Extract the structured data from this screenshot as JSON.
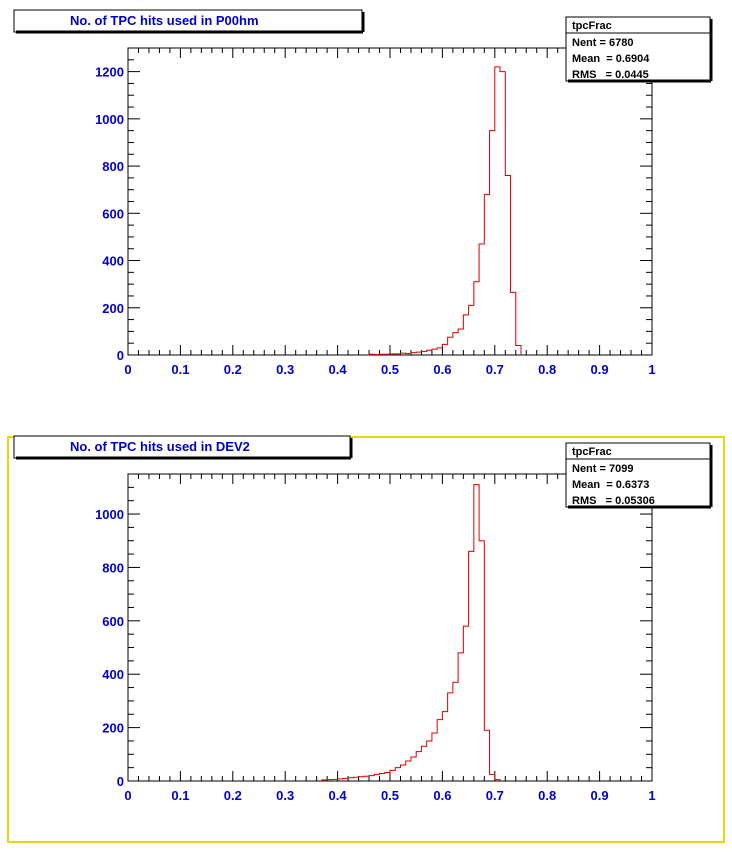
{
  "colors": {
    "axis_text": "#0000cc",
    "histogram_line": "#dd0000",
    "pad_highlight": "#e8d800",
    "frame": "#000000"
  },
  "chart_data": [
    {
      "type": "histogram",
      "title": "No. of TPC hits used in P00hm",
      "xlabel": "",
      "ylabel": "",
      "xlim": [
        0,
        1
      ],
      "ylim": [
        0,
        1300
      ],
      "x_ticks": [
        "0",
        "0.1",
        "0.2",
        "0.3",
        "0.4",
        "0.5",
        "0.6",
        "0.7",
        "0.8",
        "0.9",
        "1"
      ],
      "y_ticks": [
        "0",
        "200",
        "400",
        "600",
        "800",
        "1000",
        "1200"
      ],
      "y_tick_values": [
        0,
        200,
        400,
        600,
        800,
        1000,
        1200
      ],
      "bin_edges": [
        0.46,
        0.47,
        0.48,
        0.49,
        0.5,
        0.51,
        0.52,
        0.53,
        0.54,
        0.55,
        0.56,
        0.57,
        0.58,
        0.59,
        0.6,
        0.61,
        0.62,
        0.63,
        0.64,
        0.65,
        0.66,
        0.67,
        0.68,
        0.69,
        0.7,
        0.71,
        0.72,
        0.73,
        0.74,
        0.75
      ],
      "values": [
        3,
        2,
        3,
        3,
        5,
        5,
        8,
        6,
        10,
        12,
        15,
        20,
        25,
        30,
        45,
        75,
        95,
        110,
        170,
        210,
        310,
        470,
        680,
        950,
        1220,
        1200,
        760,
        265,
        40
      ],
      "stats": {
        "name": "tpcFrac",
        "entries": "Nent = 6780",
        "mean": "Mean  = 0.6904",
        "rms": "RMS   = 0.0445"
      }
    },
    {
      "type": "histogram",
      "title": "No. of TPC hits used in DEV2",
      "xlabel": "",
      "ylabel": "",
      "xlim": [
        0,
        1
      ],
      "ylim": [
        0,
        1150
      ],
      "x_ticks": [
        "0",
        "0.1",
        "0.2",
        "0.3",
        "0.4",
        "0.5",
        "0.6",
        "0.7",
        "0.8",
        "0.9",
        "1"
      ],
      "y_ticks": [
        "0",
        "200",
        "400",
        "600",
        "800",
        "1000"
      ],
      "y_tick_values": [
        0,
        200,
        400,
        600,
        800,
        1000
      ],
      "bin_edges": [
        0.37,
        0.38,
        0.39,
        0.4,
        0.41,
        0.42,
        0.43,
        0.44,
        0.45,
        0.46,
        0.47,
        0.48,
        0.49,
        0.5,
        0.51,
        0.52,
        0.53,
        0.54,
        0.55,
        0.56,
        0.57,
        0.58,
        0.59,
        0.6,
        0.61,
        0.62,
        0.63,
        0.64,
        0.65,
        0.66,
        0.67,
        0.68,
        0.69,
        0.7,
        0.71
      ],
      "values": [
        4,
        5,
        6,
        8,
        10,
        12,
        14,
        16,
        18,
        20,
        25,
        28,
        32,
        40,
        50,
        60,
        75,
        90,
        110,
        130,
        150,
        180,
        230,
        260,
        330,
        370,
        480,
        580,
        860,
        1110,
        900,
        190,
        25,
        5
      ],
      "stats": {
        "name": "tpcFrac",
        "entries": "Nent = 7099",
        "mean": "Mean  = 0.6373",
        "rms": "RMS   = 0.05306"
      }
    }
  ]
}
